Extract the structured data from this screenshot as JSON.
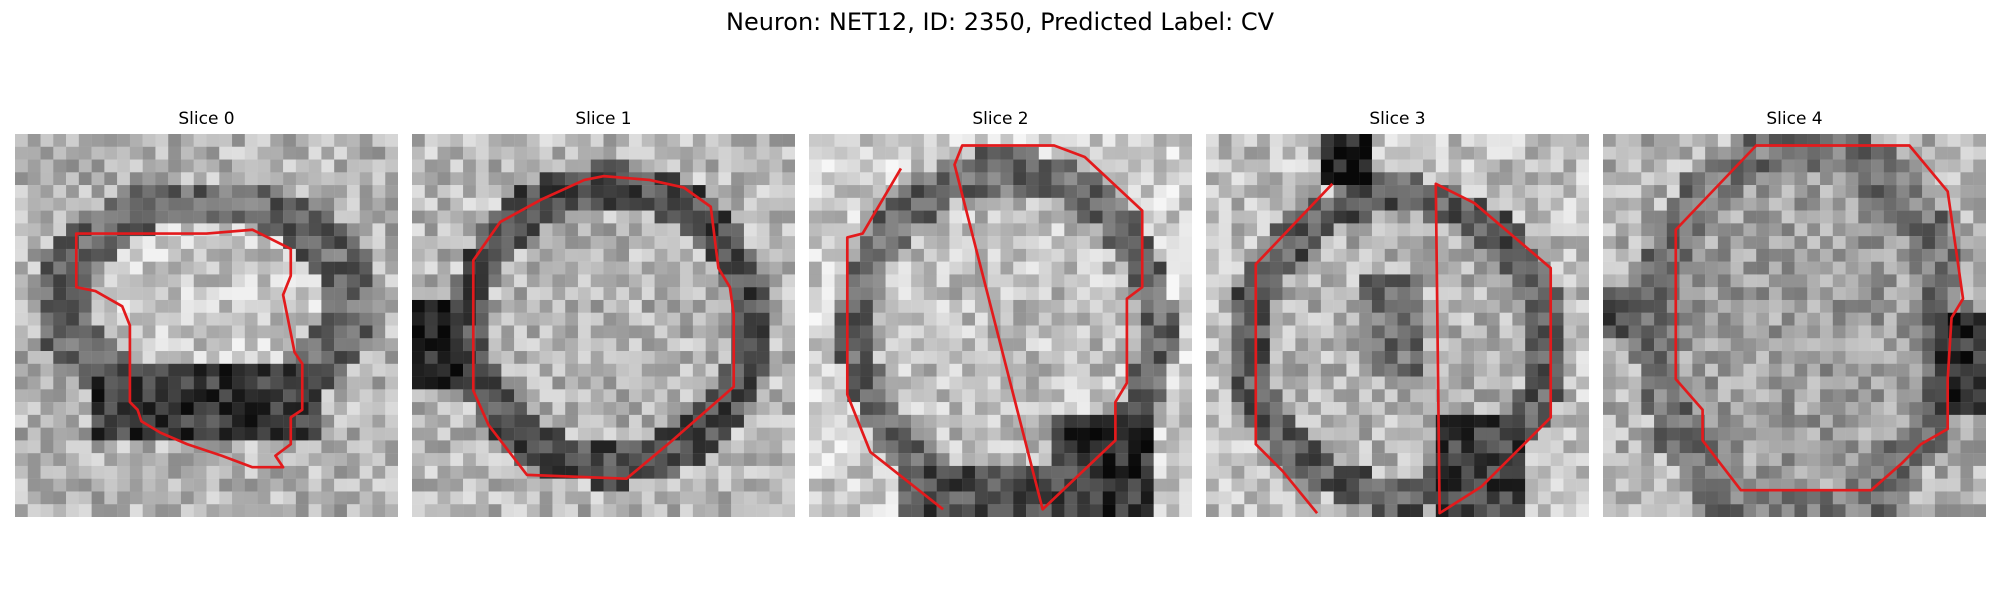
{
  "title": "Neuron: NET12, ID: 2350, Predicted Label: CV",
  "contour_color": "#e31a1c",
  "slices": [
    {
      "label": "Slice 0"
    },
    {
      "label": "Slice 1"
    },
    {
      "label": "Slice 2"
    },
    {
      "label": "Slice 3"
    },
    {
      "label": "Slice 4"
    }
  ]
}
